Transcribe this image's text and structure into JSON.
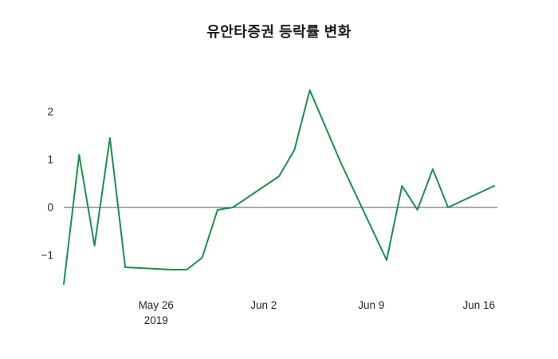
{
  "title": "유안타증권 등락률 변화",
  "chart_data": {
    "type": "line",
    "title": "유안타증권 등락률 변화",
    "xlabel": "",
    "ylabel": "",
    "grid": false,
    "legend": "none",
    "zero_line": true,
    "line_color": "#169149",
    "zero_line_color": "#555555",
    "tick_label_color": "#262626",
    "ylim": [
      -1.75,
      2.6
    ],
    "x_range_days": [
      0,
      28
    ],
    "y_ticks": [
      {
        "label": "−1",
        "value": -1
      },
      {
        "label": "0",
        "value": 0
      },
      {
        "label": "1",
        "value": 1
      },
      {
        "label": "2",
        "value": 2
      }
    ],
    "x_ticks": [
      {
        "label": "May 26",
        "sublabel": "2019",
        "day": 6
      },
      {
        "label": "Jun 2",
        "sublabel": "",
        "day": 13
      },
      {
        "label": "Jun 9",
        "sublabel": "",
        "day": 20
      },
      {
        "label": "Jun 16",
        "sublabel": "",
        "day": 27
      }
    ],
    "series": [
      {
        "name": "등락률",
        "color": "#169149",
        "points": [
          {
            "date": "May 20",
            "day": 0,
            "value": -1.6
          },
          {
            "date": "May 21",
            "day": 1,
            "value": 1.1
          },
          {
            "date": "May 22",
            "day": 2,
            "value": -0.8
          },
          {
            "date": "May 23",
            "day": 3,
            "value": 1.45
          },
          {
            "date": "May 24",
            "day": 4,
            "value": -1.25
          },
          {
            "date": "May 27",
            "day": 7,
            "value": -1.3
          },
          {
            "date": "May 28",
            "day": 8,
            "value": -1.3
          },
          {
            "date": "May 29",
            "day": 9,
            "value": -1.05
          },
          {
            "date": "May 30",
            "day": 10,
            "value": -0.05
          },
          {
            "date": "May 31",
            "day": 11,
            "value": 0.0
          },
          {
            "date": "Jun 3",
            "day": 14,
            "value": 0.65
          },
          {
            "date": "Jun 4",
            "day": 15,
            "value": 1.2
          },
          {
            "date": "Jun 5",
            "day": 16,
            "value": 2.45
          },
          {
            "date": "Jun 6",
            "day": 17,
            "value": 1.7
          },
          {
            "date": "Jun 7",
            "day": 18,
            "value": 0.95
          },
          {
            "date": "Jun 10",
            "day": 21,
            "value": -1.1
          },
          {
            "date": "Jun 11",
            "day": 22,
            "value": 0.45
          },
          {
            "date": "Jun 12",
            "day": 23,
            "value": -0.05
          },
          {
            "date": "Jun 13",
            "day": 24,
            "value": 0.8
          },
          {
            "date": "Jun 14",
            "day": 25,
            "value": 0.0
          },
          {
            "date": "Jun 17",
            "day": 28,
            "value": 0.45
          }
        ]
      }
    ]
  }
}
